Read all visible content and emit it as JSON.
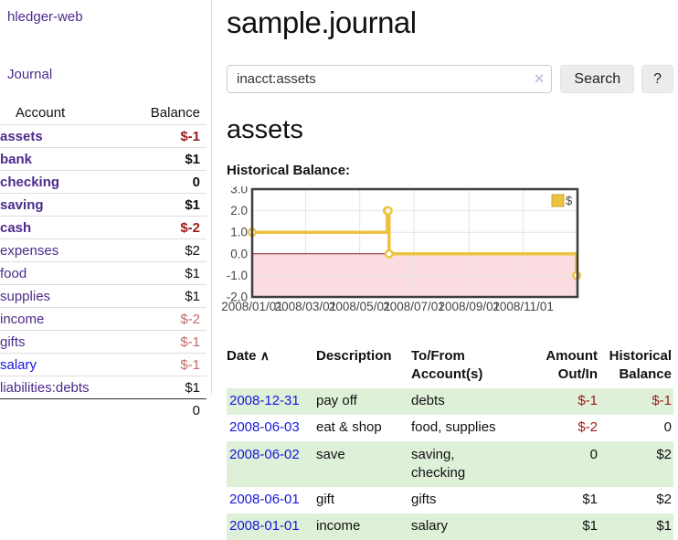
{
  "app": {
    "brand": "hledger-web",
    "nav_journal": "Journal"
  },
  "sidebar": {
    "account_col": "Account",
    "balance_col": "Balance",
    "accounts": [
      {
        "name": "assets",
        "depth": 1,
        "bold": true,
        "balance": "$-1",
        "balance_style": "neg-strong",
        "link_style": "purple"
      },
      {
        "name": "bank",
        "depth": 2,
        "bold": true,
        "balance": "$1",
        "balance_style": "pos",
        "link_style": "purple"
      },
      {
        "name": "checking",
        "depth": 3,
        "bold": true,
        "balance": "0",
        "balance_style": "pos",
        "link_style": "purple"
      },
      {
        "name": "saving",
        "depth": 3,
        "bold": true,
        "balance": "$1",
        "balance_style": "pos",
        "link_style": "purple"
      },
      {
        "name": "cash",
        "depth": 2,
        "bold": true,
        "balance": "$-2",
        "balance_style": "neg-strong",
        "link_style": "purple"
      },
      {
        "name": "expenses",
        "depth": 1,
        "bold": false,
        "balance": "$2",
        "balance_style": "pos",
        "link_style": "purple"
      },
      {
        "name": "food",
        "depth": 2,
        "bold": false,
        "balance": "$1",
        "balance_style": "pos",
        "link_style": "purple"
      },
      {
        "name": "supplies",
        "depth": 2,
        "bold": false,
        "balance": "$1",
        "balance_style": "pos",
        "link_style": "purple"
      },
      {
        "name": "income",
        "depth": 1,
        "bold": false,
        "balance": "$-2",
        "balance_style": "neg-soft",
        "link_style": "purple"
      },
      {
        "name": "gifts",
        "depth": 2,
        "bold": false,
        "balance": "$-1",
        "balance_style": "neg-soft",
        "link_style": "purple"
      },
      {
        "name": "salary",
        "depth": 2,
        "bold": false,
        "balance": "$-1",
        "balance_style": "neg-soft",
        "link_style": "blue"
      },
      {
        "name": "liabilities:debts",
        "depth": 1,
        "bold": false,
        "balance": "$1",
        "balance_style": "pos",
        "link_style": "purple"
      }
    ],
    "total": "0"
  },
  "header": {
    "title": "sample.journal"
  },
  "search": {
    "value": "inacct:assets",
    "clear_icon": "×",
    "button": "Search",
    "help_button": "?"
  },
  "account_page": {
    "title": "assets",
    "chart_label": "Historical Balance:"
  },
  "chart_data": {
    "type": "line",
    "title": "Historical Balance:",
    "step": true,
    "series": [
      {
        "name": "$",
        "points": [
          [
            "2008-01-01",
            1
          ],
          [
            "2008-06-01",
            2
          ],
          [
            "2008-06-02",
            2
          ],
          [
            "2008-06-03",
            0
          ],
          [
            "2008-12-31",
            -1
          ]
        ]
      }
    ],
    "xlim": [
      "2008-01-01",
      "2009-01-01"
    ],
    "ylim": [
      -2,
      3
    ],
    "yticks": [
      -2,
      -1,
      0,
      1,
      2,
      3
    ],
    "xticks": [
      {
        "date": "2008-01-01",
        "label": "2008/01/01"
      },
      {
        "date": "2008-03-01",
        "label": "2008/03/01"
      },
      {
        "date": "2008-05-01",
        "label": "2008/05/01"
      },
      {
        "date": "2008-07-01",
        "label": "2008/07/01"
      },
      {
        "date": "2008-09-01",
        "label": "2008/09/01"
      },
      {
        "date": "2008-11-01",
        "label": "2008/11/01"
      }
    ],
    "grid": true,
    "legend_position": "top-right",
    "colors": {
      "line": "#edc240",
      "marker_fill": "#ffffff",
      "legend_swatch_border": "#c9a42e",
      "negative_region": "#fbdde1",
      "zero_line": "#8b1a1a",
      "grid": "#e4e4e4",
      "border": "#3e3e3e",
      "tick_text": "#444444"
    }
  },
  "register": {
    "columns": {
      "date": "Date",
      "sort_caret": "∧",
      "description": "Description",
      "accounts": "To/From Account(s)",
      "amount": "Amount Out/In",
      "balance": "Historical Balance"
    },
    "rows": [
      {
        "date": "2008-12-31",
        "description": "pay off",
        "accounts": "debts",
        "amount": "$-1",
        "amount_neg": true,
        "balance": "$-1",
        "balance_neg": true,
        "striped": true
      },
      {
        "date": "2008-06-03",
        "description": "eat & shop",
        "accounts": "food, supplies",
        "amount": "$-2",
        "amount_neg": true,
        "balance": "0",
        "balance_neg": false,
        "striped": false
      },
      {
        "date": "2008-06-02",
        "description": "save",
        "accounts": "saving,\nchecking",
        "amount": "0",
        "amount_neg": false,
        "balance": "$2",
        "balance_neg": false,
        "striped": true
      },
      {
        "date": "2008-06-01",
        "description": "gift",
        "accounts": "gifts",
        "amount": "$1",
        "amount_neg": false,
        "balance": "$2",
        "balance_neg": false,
        "striped": false
      },
      {
        "date": "2008-01-01",
        "description": "income",
        "accounts": "salary",
        "amount": "$1",
        "amount_neg": false,
        "balance": "$1",
        "balance_neg": false,
        "striped": true
      }
    ]
  }
}
